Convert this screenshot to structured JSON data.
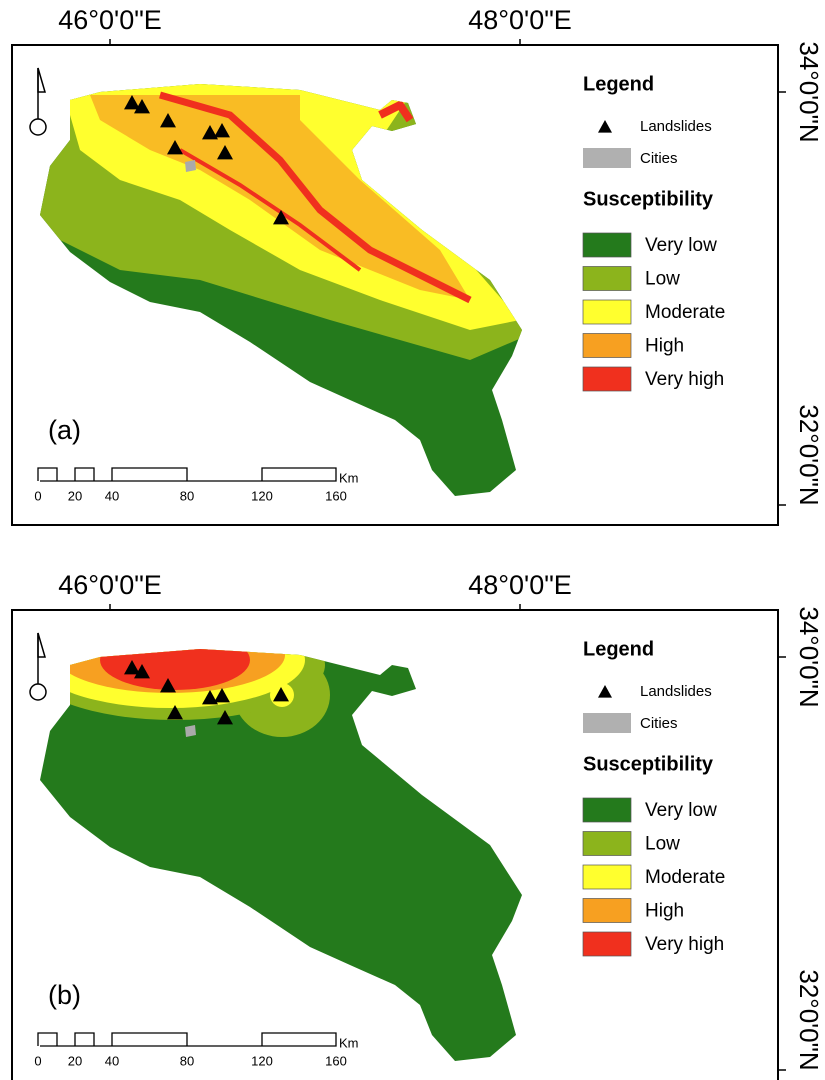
{
  "panels": [
    {
      "label": "(a)",
      "longitude_labels": [
        "46°0'0\"E",
        "48°0'0\"E"
      ],
      "latitude_labels": [
        "34°0'0\"N",
        "32°0'0\"N"
      ],
      "legend": {
        "title": "Legend",
        "landslides": "Landslides",
        "cities": "Cities",
        "susceptibility_title": "Susceptibility",
        "classes": [
          "Very low",
          "Low",
          "Moderate",
          "High",
          "Very high"
        ]
      },
      "scale_bar": {
        "labels": [
          "0",
          "20",
          "40",
          "80",
          "120",
          "160"
        ],
        "unit": "Km"
      }
    },
    {
      "label": "(b)",
      "longitude_labels": [
        "46°0'0\"E",
        "48°0'0\"E"
      ],
      "latitude_labels": [
        "34°0'0\"N",
        "32°0'0\"N"
      ],
      "legend": {
        "title": "Legend",
        "landslides": "Landslides",
        "cities": "Cities",
        "susceptibility_title": "Susceptibility",
        "classes": [
          "Very low",
          "Low",
          "Moderate",
          "High",
          "Very high"
        ]
      },
      "scale_bar": {
        "labels": [
          "0",
          "20",
          "40",
          "80",
          "120",
          "160"
        ],
        "unit": "Km"
      }
    }
  ]
}
